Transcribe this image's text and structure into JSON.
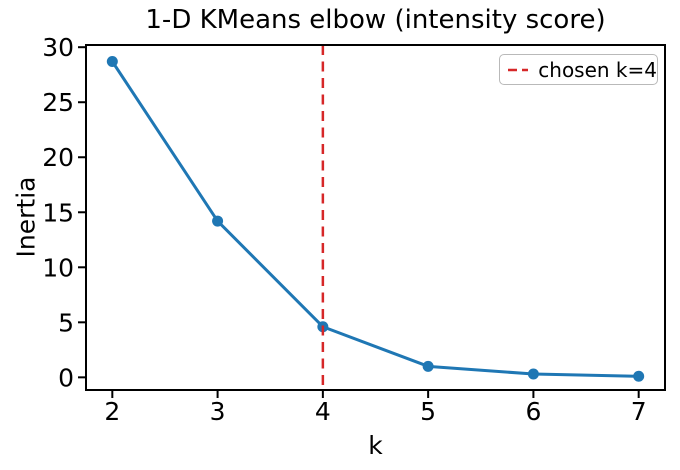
{
  "figure": {
    "background_color": "#ffffff",
    "text_color": "#000000",
    "spine_color": "#000000"
  },
  "chart_data": {
    "type": "line",
    "title": "1-D KMeans elbow (intensity score)",
    "xlabel": "k",
    "ylabel": "Inertia",
    "x": [
      2,
      3,
      4,
      5,
      6,
      7
    ],
    "series": [
      {
        "name": "inertia",
        "values": [
          28.7,
          14.2,
          4.6,
          1.0,
          0.3,
          0.1
        ],
        "color": "#1f77b4",
        "marker": "o",
        "marker_size": 11,
        "line_width": 3
      }
    ],
    "xticks": [
      "2",
      "3",
      "4",
      "5",
      "6",
      "7"
    ],
    "xtick_values": [
      2,
      3,
      4,
      5,
      6,
      7
    ],
    "yticks": [
      "0",
      "5",
      "10",
      "15",
      "20",
      "25",
      "30"
    ],
    "ytick_values": [
      0,
      5,
      10,
      15,
      20,
      25,
      30
    ],
    "xlim": [
      1.75,
      7.25
    ],
    "ylim": [
      -1.15,
      30.2
    ],
    "grid": false,
    "vline": {
      "x": 4,
      "color": "#d62728",
      "style": "dashed",
      "label": "chosen k=4"
    },
    "legend": {
      "position": "upper right",
      "entries": [
        {
          "label": "chosen k=4",
          "color": "#d62728",
          "style": "dashed"
        }
      ]
    }
  }
}
